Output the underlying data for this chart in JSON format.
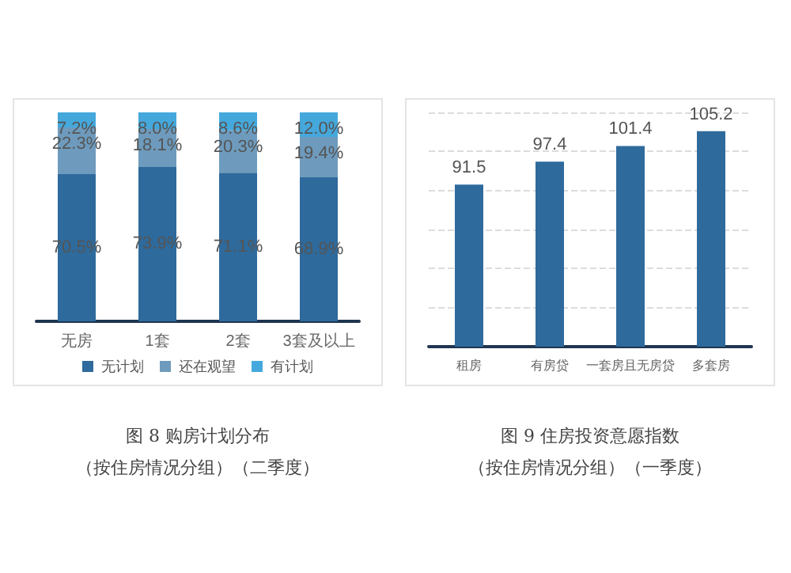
{
  "chart_data": [
    {
      "type": "bar",
      "title": "图 8 购房计划分布",
      "subtitle": "（按住房情况分组）（二季度）",
      "categories": [
        "无房",
        "1套",
        "2套",
        "3套及以上"
      ],
      "stacked": true,
      "ylim": [
        0,
        100
      ],
      "tick_labels": "x",
      "grid": false,
      "legend": "bottom",
      "series": [
        {
          "name": "无计划",
          "color": "#2e6a9c",
          "values": [
            70.5,
            73.9,
            71.1,
            68.9
          ],
          "value_labels": [
            "70.5%",
            "73.9%",
            "71.1%",
            "68.9%"
          ]
        },
        {
          "name": "还在观望",
          "color": "#6e9bbd",
          "values": [
            22.3,
            18.1,
            20.3,
            19.4
          ],
          "value_labels": [
            "22.3%",
            "18.1%",
            "20.3%",
            "19.4%"
          ]
        },
        {
          "name": "有计划",
          "color": "#45a8dc",
          "values": [
            7.2,
            8.0,
            8.6,
            12.0
          ],
          "value_labels": [
            "7.2%",
            "8.0%",
            "8.6%",
            "12.0%"
          ]
        }
      ]
    },
    {
      "type": "bar",
      "title": "图 9 住房投资意愿指数",
      "subtitle": "（按住房情况分组）（一季度）",
      "categories": [
        "租房",
        "有房贷",
        "一套房且无房贷",
        "多套房"
      ],
      "ylim": [
        50,
        110
      ],
      "yticks": [
        {
          "value": 50,
          "label": null
        },
        {
          "value": 60,
          "label": null
        },
        {
          "value": 70,
          "label": null
        },
        {
          "value": 80,
          "label": null
        },
        {
          "value": 90,
          "label": null
        },
        {
          "value": 100,
          "label": null
        },
        {
          "value": 110,
          "label": null
        }
      ],
      "tick_labels": "x",
      "grid": "y",
      "data_labels": true,
      "legend": false,
      "series": [
        {
          "color": "#2e6a9c",
          "values": [
            91.5,
            97.4,
            101.4,
            105.2
          ]
        }
      ]
    }
  ]
}
